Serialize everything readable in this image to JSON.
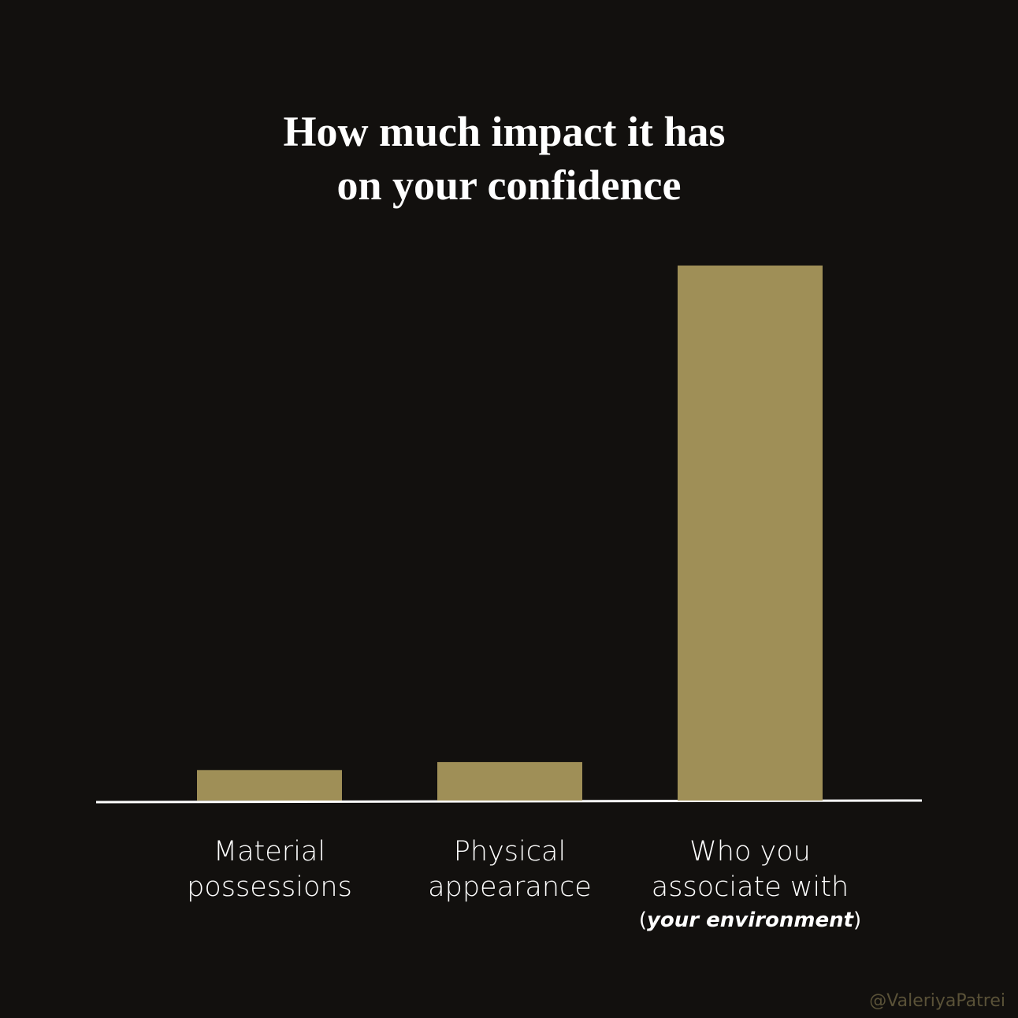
{
  "chart_data": {
    "type": "bar",
    "title": [
      "How much impact it has",
      "on your confidence"
    ],
    "categories": [
      [
        "Material",
        "possessions"
      ],
      [
        "Physical",
        "appearance"
      ],
      [
        "Who you",
        "associate with"
      ]
    ],
    "annotation_parts": [
      "(",
      "your environment",
      ")"
    ],
    "values": [
      5.7,
      7.2,
      100
    ],
    "color": "#9f8f57",
    "ylim": [
      0,
      100
    ],
    "credit": "@ValeriyaPatrei"
  }
}
